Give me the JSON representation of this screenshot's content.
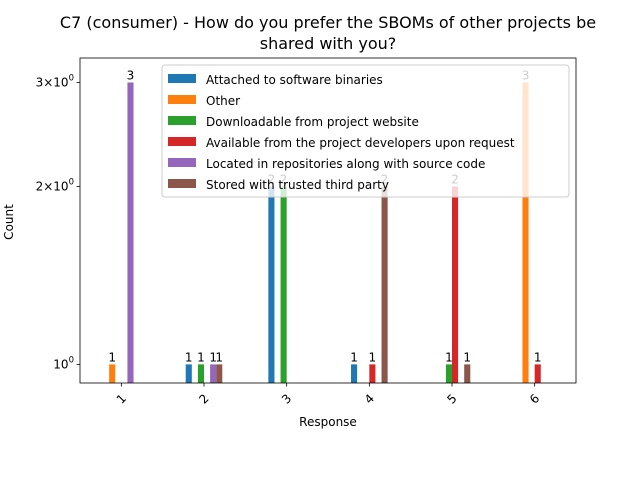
{
  "chart_data": {
    "type": "bar",
    "title_lines": [
      "C7 (consumer) - How do you prefer the SBOMs of other projects be",
      "shared with you?"
    ],
    "xlabel": "Response",
    "ylabel": "Count",
    "y_scale": "log",
    "ylim": [
      0.93,
      3.3
    ],
    "y_ticks": [
      {
        "value": 1,
        "base": "10",
        "exp": "0",
        "coef": ""
      },
      {
        "value": 2,
        "base": "10",
        "exp": "0",
        "coef": "2×"
      },
      {
        "value": 3,
        "base": "10",
        "exp": "0",
        "coef": "3×"
      }
    ],
    "categories": [
      "1",
      "2",
      "3",
      "4",
      "5",
      "6"
    ],
    "legend_position": "upper-right",
    "series": [
      {
        "name": "Attached to software binaries",
        "color": "#1f77b4",
        "values": [
          null,
          1,
          2,
          1,
          null,
          null
        ]
      },
      {
        "name": "Other",
        "color": "#ff7f0e",
        "values": [
          1,
          null,
          null,
          null,
          null,
          3
        ]
      },
      {
        "name": "Downloadable from project website",
        "color": "#2ca02c",
        "values": [
          null,
          1,
          2,
          null,
          1,
          null
        ]
      },
      {
        "name": "Available from the project developers upon request",
        "color": "#d62728",
        "values": [
          null,
          null,
          null,
          1,
          2,
          1
        ]
      },
      {
        "name": "Located in repositories along with source code",
        "color": "#9467bd",
        "values": [
          3,
          1,
          null,
          null,
          null,
          null
        ]
      },
      {
        "name": "Stored with trusted third party",
        "color": "#8c564b",
        "values": [
          null,
          1,
          null,
          2,
          1,
          null
        ]
      }
    ]
  }
}
